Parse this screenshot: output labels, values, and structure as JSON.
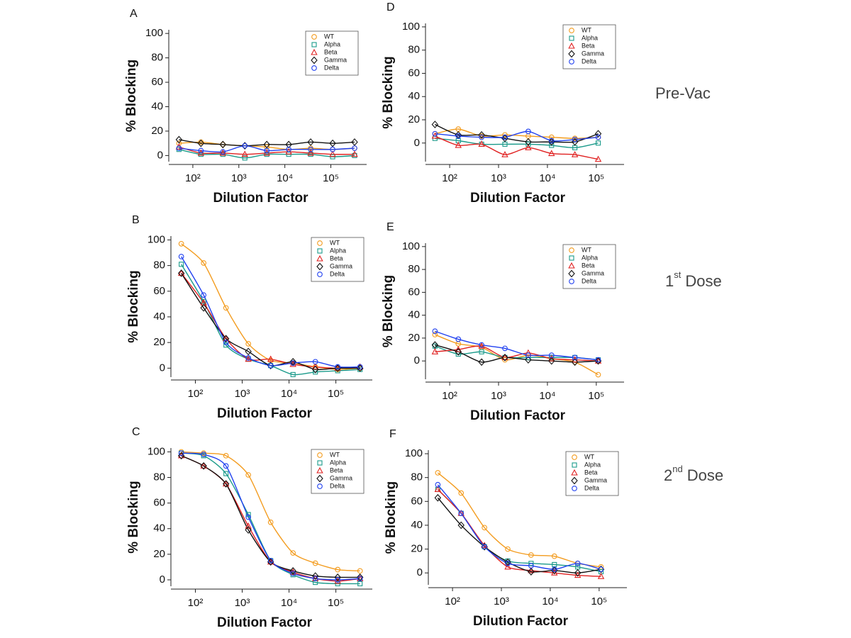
{
  "chart_data": [
    {
      "type": "scatter",
      "panel": "A",
      "x_label": "Dilution Factor",
      "y_label": "% Blocking",
      "log_x": true,
      "legend": "upper right",
      "x": [
        50,
        150,
        450,
        1350,
        4050,
        12150,
        36450,
        109350,
        328050
      ],
      "xlim": [
        30,
        600000
      ],
      "xticks": [
        {
          "value": 100,
          "label": "10²"
        },
        {
          "value": 1000,
          "label": "10³"
        },
        {
          "value": 10000,
          "label": "10⁴"
        },
        {
          "value": 100000,
          "label": "10⁵"
        }
      ],
      "ylim": [
        -5,
        103
      ],
      "yticks": [
        0,
        20,
        40,
        60,
        80,
        100
      ],
      "series": [
        {
          "name": "WT",
          "color": "#f39c1f",
          "marker": "circle",
          "values": [
            10,
            11,
            9,
            8,
            7,
            5,
            6,
            5,
            6
          ]
        },
        {
          "name": "Alpha",
          "color": "#1a9a8a",
          "marker": "square",
          "values": [
            5,
            1,
            1,
            -2,
            1,
            1,
            1,
            -1,
            0
          ]
        },
        {
          "name": "Beta",
          "color": "#e02020",
          "marker": "triangle",
          "values": [
            7,
            2,
            2,
            1,
            2,
            3,
            2,
            1,
            1
          ]
        },
        {
          "name": "Gamma",
          "color": "#111111",
          "marker": "diamond",
          "values": [
            13,
            10,
            9,
            8,
            9,
            9,
            11,
            10,
            11
          ]
        },
        {
          "name": "Delta",
          "color": "#2040f0",
          "marker": "circle",
          "values": [
            6,
            4,
            3,
            8,
            4,
            5,
            5,
            5,
            6
          ]
        }
      ]
    },
    {
      "type": "scatter",
      "panel": "B",
      "x_label": "Dilution Factor",
      "y_label": "% Blocking",
      "log_x": true,
      "legend": "upper right",
      "x": [
        50,
        150,
        450,
        1350,
        4050,
        12150,
        36450,
        109350,
        328050
      ],
      "xlim": [
        30,
        600000
      ],
      "xticks": [
        {
          "value": 100,
          "label": "10²"
        },
        {
          "value": 1000,
          "label": "10³"
        },
        {
          "value": 10000,
          "label": "10⁴"
        },
        {
          "value": 100000,
          "label": "10⁵"
        }
      ],
      "ylim": [
        -7,
        103
      ],
      "yticks": [
        0,
        20,
        40,
        60,
        80,
        100
      ],
      "series": [
        {
          "name": "WT",
          "color": "#f39c1f",
          "marker": "circle",
          "values": [
            97,
            82,
            47,
            19,
            6,
            4,
            1,
            -1,
            0
          ]
        },
        {
          "name": "Alpha",
          "color": "#1a9a8a",
          "marker": "square",
          "values": [
            81,
            52,
            18,
            7,
            2,
            -5,
            -3,
            -2,
            -1
          ]
        },
        {
          "name": "Beta",
          "color": "#e02020",
          "marker": "triangle",
          "values": [
            74,
            51,
            23,
            7,
            7,
            3,
            1,
            0,
            1
          ]
        },
        {
          "name": "Gamma",
          "color": "#111111",
          "marker": "diamond",
          "values": [
            74,
            47,
            23,
            13,
            2,
            5,
            -1,
            0,
            0
          ]
        },
        {
          "name": "Delta",
          "color": "#2040f0",
          "marker": "circle",
          "values": [
            87,
            57,
            20,
            8,
            2,
            4,
            5,
            1,
            1
          ]
        }
      ]
    },
    {
      "type": "scatter",
      "panel": "C",
      "x_label": "Dilution Factor",
      "y_label": "% Blocking",
      "log_x": true,
      "legend": "upper right",
      "x": [
        50,
        150,
        450,
        1350,
        4050,
        12150,
        36450,
        109350,
        328050
      ],
      "xlim": [
        30,
        600000
      ],
      "xticks": [
        {
          "value": 100,
          "label": "10²"
        },
        {
          "value": 1000,
          "label": "10³"
        },
        {
          "value": 10000,
          "label": "10⁴"
        },
        {
          "value": 100000,
          "label": "10⁵"
        }
      ],
      "ylim": [
        -5,
        103
      ],
      "yticks": [
        0,
        20,
        40,
        60,
        80,
        100
      ],
      "series": [
        {
          "name": "WT",
          "color": "#f39c1f",
          "marker": "circle",
          "values": [
            100,
            99,
            97,
            82,
            45,
            21,
            13,
            8,
            7
          ]
        },
        {
          "name": "Alpha",
          "color": "#1a9a8a",
          "marker": "square",
          "values": [
            99,
            97,
            83,
            51,
            15,
            4,
            -2,
            -3,
            -3
          ]
        },
        {
          "name": "Beta",
          "color": "#e02020",
          "marker": "triangle",
          "values": [
            97,
            89,
            75,
            42,
            14,
            6,
            1,
            -1,
            1
          ]
        },
        {
          "name": "Gamma",
          "color": "#111111",
          "marker": "diamond",
          "values": [
            97,
            89,
            75,
            39,
            14,
            7,
            3,
            2,
            2
          ]
        },
        {
          "name": "Delta",
          "color": "#2040f0",
          "marker": "circle",
          "values": [
            99,
            98,
            89,
            49,
            15,
            5,
            1,
            0,
            1
          ]
        }
      ]
    },
    {
      "type": "scatter",
      "panel": "D",
      "x_label": "Dilution Factor",
      "y_label": "% Blocking",
      "log_x": true,
      "legend": "upper right",
      "x": [
        50,
        150,
        450,
        1350,
        4050,
        12150,
        36450,
        109350
      ],
      "xlim": [
        32,
        370000
      ],
      "xticks": [
        {
          "value": 100,
          "label": "10²"
        },
        {
          "value": 1000,
          "label": "10³"
        },
        {
          "value": 10000,
          "label": "10⁴"
        },
        {
          "value": 100000,
          "label": "10⁵"
        }
      ],
      "ylim": [
        -16,
        103
      ],
      "yticks": [
        0,
        20,
        40,
        60,
        80,
        100
      ],
      "series": [
        {
          "name": "WT",
          "color": "#f39c1f",
          "marker": "circle",
          "values": [
            8,
            12,
            6,
            7,
            6,
            5,
            4,
            5
          ]
        },
        {
          "name": "Alpha",
          "color": "#1a9a8a",
          "marker": "square",
          "values": [
            4,
            2,
            -1,
            -1,
            -1,
            -2,
            -4,
            0
          ]
        },
        {
          "name": "Beta",
          "color": "#e02020",
          "marker": "triangle",
          "values": [
            6,
            -2,
            -1,
            -10,
            -4,
            -9,
            -10,
            -14
          ]
        },
        {
          "name": "Gamma",
          "color": "#111111",
          "marker": "diamond",
          "values": [
            16,
            7,
            7,
            4,
            1,
            1,
            1,
            8
          ]
        },
        {
          "name": "Delta",
          "color": "#2040f0",
          "marker": "circle",
          "values": [
            8,
            6,
            5,
            5,
            10,
            2,
            3,
            5
          ]
        }
      ]
    },
    {
      "type": "scatter",
      "panel": "E",
      "x_label": "Dilution Factor",
      "y_label": "% Blocking",
      "log_x": true,
      "legend": "upper right",
      "x": [
        50,
        150,
        450,
        1350,
        4050,
        12150,
        36450,
        109350
      ],
      "xlim": [
        32,
        370000
      ],
      "xticks": [
        {
          "value": 100,
          "label": "10²"
        },
        {
          "value": 1000,
          "label": "10³"
        },
        {
          "value": 10000,
          "label": "10⁴"
        },
        {
          "value": 100000,
          "label": "10⁵"
        }
      ],
      "ylim": [
        -16,
        103
      ],
      "yticks": [
        0,
        20,
        40,
        60,
        80,
        100
      ],
      "series": [
        {
          "name": "WT",
          "color": "#f39c1f",
          "marker": "circle",
          "values": [
            23,
            15,
            12,
            1,
            5,
            2,
            -1,
            -12
          ]
        },
        {
          "name": "Alpha",
          "color": "#1a9a8a",
          "marker": "square",
          "values": [
            13,
            6,
            8,
            3,
            3,
            3,
            3,
            1
          ]
        },
        {
          "name": "Beta",
          "color": "#e02020",
          "marker": "triangle",
          "values": [
            8,
            10,
            13,
            3,
            7,
            2,
            1,
            0
          ]
        },
        {
          "name": "Gamma",
          "color": "#111111",
          "marker": "diamond",
          "values": [
            14,
            8,
            -1,
            3,
            1,
            0,
            -1,
            0
          ]
        },
        {
          "name": "Delta",
          "color": "#2040f0",
          "marker": "circle",
          "values": [
            26,
            19,
            14,
            11,
            5,
            5,
            3,
            1
          ]
        }
      ]
    },
    {
      "type": "scatter",
      "panel": "F",
      "x_label": "Dilution Factor",
      "y_label": "% Blocking",
      "log_x": true,
      "legend": "upper right",
      "x": [
        50,
        150,
        450,
        1350,
        4050,
        12150,
        36450,
        109350
      ],
      "xlim": [
        32,
        370000
      ],
      "xticks": [
        {
          "value": 100,
          "label": "10²"
        },
        {
          "value": 1000,
          "label": "10³"
        },
        {
          "value": 10000,
          "label": "10⁴"
        },
        {
          "value": 100000,
          "label": "10⁵"
        }
      ],
      "ylim": [
        -10,
        103
      ],
      "yticks": [
        0,
        20,
        40,
        60,
        80,
        100
      ],
      "series": [
        {
          "name": "WT",
          "color": "#f39c1f",
          "marker": "circle",
          "values": [
            84,
            67,
            38,
            20,
            15,
            14,
            8,
            5
          ]
        },
        {
          "name": "Alpha",
          "color": "#1a9a8a",
          "marker": "square",
          "values": [
            70,
            50,
            22,
            10,
            8,
            7,
            5,
            1
          ]
        },
        {
          "name": "Beta",
          "color": "#e02020",
          "marker": "triangle",
          "values": [
            70,
            50,
            23,
            5,
            2,
            0,
            -2,
            -3
          ]
        },
        {
          "name": "Gamma",
          "color": "#111111",
          "marker": "diamond",
          "values": [
            63,
            40,
            22,
            9,
            1,
            2,
            0,
            3
          ]
        },
        {
          "name": "Delta",
          "color": "#2040f0",
          "marker": "circle",
          "values": [
            74,
            50,
            22,
            8,
            6,
            3,
            8,
            3
          ]
        }
      ]
    }
  ],
  "row_labels": [
    {
      "text": "Pre-Vac"
    },
    {
      "ordinal": "1",
      "suffix": "st",
      "text": "Dose"
    },
    {
      "ordinal": "2",
      "suffix": "nd",
      "text": "Dose"
    }
  ]
}
